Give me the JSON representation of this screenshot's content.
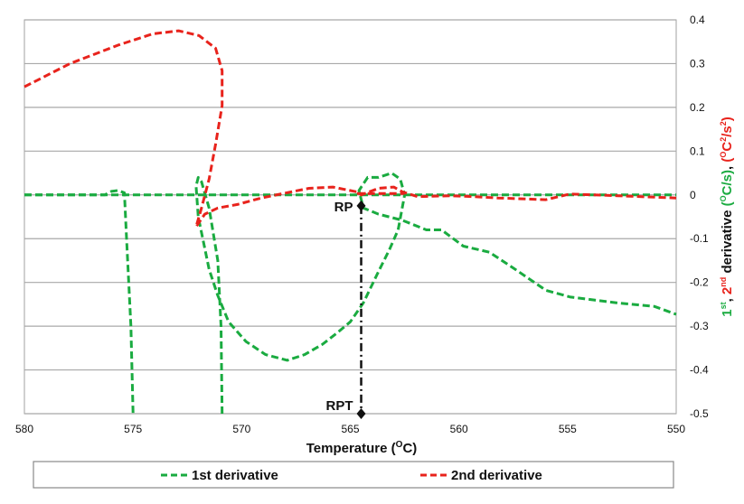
{
  "chart_data": {
    "type": "line",
    "xlabel": "Temperature (",
    "xlabel_sup": "O",
    "xlabel_end": "C)",
    "xlim": [
      580,
      550
    ],
    "ylim": [
      -0.5,
      0.4
    ],
    "x_ticks": [
      "580",
      "575",
      "570",
      "565",
      "560",
      "555",
      "550"
    ],
    "y_ticks": [
      "0.4",
      "0.3",
      "0.2",
      "0.1",
      "0",
      "-0.1",
      "-0.2",
      "-0.3",
      "-0.4",
      "-0.5"
    ],
    "grid": "horizontal",
    "legend_placement": "bottom",
    "ylabel_parts": {
      "first": "1",
      "first_sup": "st",
      "sep": ", ",
      "second": "2",
      "second_sup": "nd",
      "mid": " derivative ",
      "unit1": "(",
      "unit1_sup": "O",
      "unit1_end": "C/s)",
      "comma": ", ",
      "unit2": "(",
      "unit2_sup": "O",
      "unit2_mid": "C",
      "unit2_sup2": "2",
      "unit2_mid2": "/s",
      "unit2_sup3": "2",
      "unit2_end": ")"
    },
    "series": [
      {
        "name": "1st derivative",
        "color": "#1aab40",
        "segments": [
          [
            [
              580,
              0
            ],
            [
              550,
              0
            ]
          ],
          [
            [
              580,
              0
            ],
            [
              576.3,
              0
            ],
            [
              576.0,
              0.008
            ],
            [
              575.7,
              0.01
            ],
            [
              575.4,
              0.005
            ],
            [
              575.3,
              -0.1
            ],
            [
              575.1,
              -0.3
            ],
            [
              575.0,
              -0.5
            ]
          ],
          [
            [
              570.9,
              -0.5
            ],
            [
              570.95,
              -0.3
            ],
            [
              571.1,
              -0.15
            ],
            [
              571.5,
              -0.03
            ],
            [
              571.85,
              0.03
            ],
            [
              572.0,
              0.04
            ],
            [
              572.1,
              0.02
            ],
            [
              572.0,
              -0.05
            ],
            [
              571.5,
              -0.17
            ],
            [
              571.1,
              -0.23
            ],
            [
              570.6,
              -0.29
            ],
            [
              569.8,
              -0.335
            ],
            [
              568.9,
              -0.365
            ],
            [
              567.9,
              -0.378
            ],
            [
              567.1,
              -0.365
            ],
            [
              566.3,
              -0.342
            ],
            [
              565.6,
              -0.315
            ],
            [
              565.0,
              -0.29
            ],
            [
              564.4,
              -0.247
            ],
            [
              563.7,
              -0.175
            ],
            [
              563.2,
              -0.125
            ],
            [
              562.8,
              -0.08
            ],
            [
              562.5,
              0
            ],
            [
              562.7,
              0.036
            ],
            [
              563.1,
              0.05
            ],
            [
              563.7,
              0.04
            ],
            [
              564.2,
              0.04
            ],
            [
              564.6,
              0.01
            ],
            [
              564.4,
              -0.03
            ],
            [
              563.7,
              -0.044
            ],
            [
              562.6,
              -0.058
            ],
            [
              561.5,
              -0.08
            ],
            [
              560.8,
              -0.08
            ],
            [
              559.8,
              -0.117
            ],
            [
              558.6,
              -0.131
            ],
            [
              557.5,
              -0.167
            ],
            [
              556.0,
              -0.218
            ],
            [
              554.9,
              -0.233
            ],
            [
              552.7,
              -0.247
            ],
            [
              551.0,
              -0.255
            ],
            [
              550.0,
              -0.273
            ]
          ]
        ]
      },
      {
        "name": "2nd derivative",
        "color": "#e8231c",
        "segments": [
          [
            [
              580,
              0.247
            ],
            [
              577.9,
              0.3
            ],
            [
              575.7,
              0.342
            ],
            [
              574.1,
              0.368
            ],
            [
              572.9,
              0.375
            ],
            [
              571.96,
              0.364
            ],
            [
              571.2,
              0.335
            ],
            [
              570.9,
              0.284
            ],
            [
              570.9,
              0.204
            ],
            [
              571.2,
              0.116
            ],
            [
              571.5,
              0.036
            ],
            [
              571.85,
              -0.03
            ],
            [
              572.1,
              -0.073
            ],
            [
              571.7,
              -0.044
            ],
            [
              571.1,
              -0.03
            ],
            [
              570.2,
              -0.022
            ],
            [
              569.1,
              -0.007
            ],
            [
              568.0,
              0.004
            ],
            [
              566.9,
              0.015
            ],
            [
              565.8,
              0.018
            ],
            [
              564.7,
              0.007
            ],
            [
              564.5,
              0
            ],
            [
              563.7,
              0.015
            ],
            [
              563.0,
              0.018
            ],
            [
              562.6,
              0.007
            ],
            [
              561.9,
              -0.004
            ],
            [
              560.4,
              -0.002
            ],
            [
              559.3,
              -0.004
            ],
            [
              558.2,
              -0.007
            ],
            [
              557.1,
              -0.009
            ],
            [
              556.0,
              -0.011
            ],
            [
              554.9,
              0.002
            ],
            [
              552.7,
              -0.002
            ],
            [
              550.0,
              -0.007
            ]
          ],
          [
            [
              564.7,
              0.003
            ],
            [
              562.5,
              0.003
            ]
          ]
        ]
      }
    ],
    "annotations": [
      {
        "label": "RP",
        "x": 564.5,
        "y": -0.025
      },
      {
        "label": "RPT",
        "x": 564.5,
        "y": -0.5
      }
    ]
  }
}
